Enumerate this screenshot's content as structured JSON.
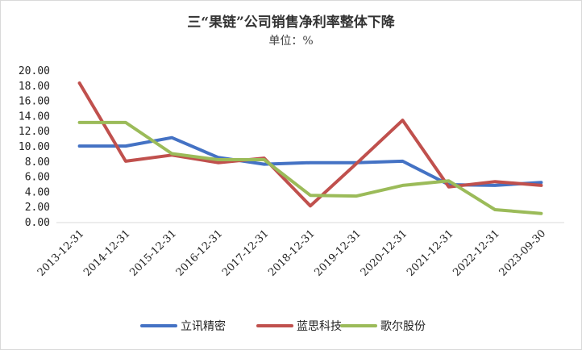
{
  "chart_data": {
    "type": "line",
    "title": "三“果链”公司销售净利率整体下降",
    "subtitle": "单位：%",
    "categories": [
      "2013-12-31",
      "2014-12-31",
      "2015-12-31",
      "2016-12-31",
      "2017-12-31",
      "2018-12-31",
      "2019-12-31",
      "2020-12-31",
      "2021-12-31",
      "2022-12-31",
      "2023-09-30"
    ],
    "ylim": [
      0,
      20
    ],
    "yticks": [
      "0.00",
      "2.00",
      "4.00",
      "6.00",
      "8.00",
      "10.00",
      "12.00",
      "14.00",
      "16.00",
      "18.00",
      "20.00"
    ],
    "grid": false,
    "legend_position": "bottom",
    "series": [
      {
        "name": "立讯精密",
        "color": "#4472c4",
        "values": [
          10.1,
          10.1,
          11.2,
          8.6,
          7.7,
          7.9,
          7.9,
          8.1,
          5.0,
          4.9,
          5.3
        ]
      },
      {
        "name": "蓝思科技",
        "color": "#c0504d",
        "values": [
          18.4,
          8.1,
          8.9,
          7.9,
          8.5,
          2.2,
          7.8,
          13.5,
          4.7,
          5.4,
          4.9
        ]
      },
      {
        "name": "歌尔股份",
        "color": "#9bbb59",
        "values": [
          13.2,
          13.2,
          9.1,
          8.3,
          8.3,
          3.6,
          3.5,
          4.9,
          5.5,
          1.7,
          1.2
        ]
      }
    ]
  }
}
